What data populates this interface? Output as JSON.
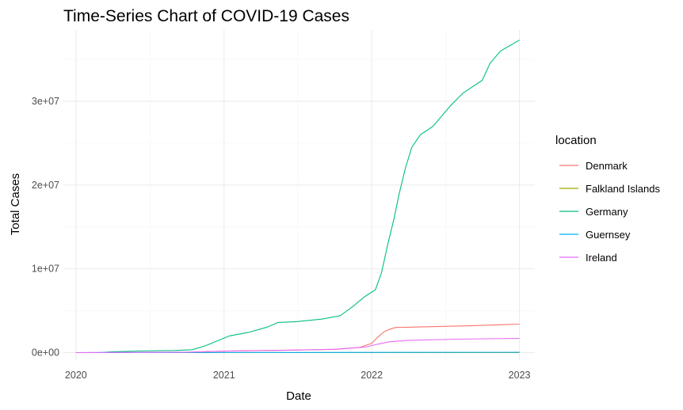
{
  "chart_data": {
    "type": "line",
    "title": "Time-Series Chart of COVID-19 Cases",
    "xlabel": "Date",
    "ylabel": "Total Cases",
    "x_ticks": [
      "2020",
      "2021",
      "2022",
      "2023"
    ],
    "y_ticks": [
      "0e+00",
      "1e+07",
      "2e+07",
      "3e+07"
    ],
    "xlim": [
      "2019-12-01",
      "2023-02-08"
    ],
    "ylim": [
      -900000,
      38500000
    ],
    "grid": true,
    "legend": {
      "title": "location",
      "position": "right"
    },
    "series": [
      {
        "name": "Denmark",
        "color": "#F8766D",
        "points": [
          [
            "2020-01-01",
            0
          ],
          [
            "2020-03-01",
            0
          ],
          [
            "2020-06-01",
            12000
          ],
          [
            "2020-10-01",
            30000
          ],
          [
            "2021-01-01",
            190000
          ],
          [
            "2021-06-01",
            290000
          ],
          [
            "2021-10-01",
            380000
          ],
          [
            "2021-12-01",
            600000
          ],
          [
            "2022-01-01",
            1100000
          ],
          [
            "2022-01-15",
            1800000
          ],
          [
            "2022-02-01",
            2500000
          ],
          [
            "2022-02-15",
            2800000
          ],
          [
            "2022-03-01",
            3000000
          ],
          [
            "2022-06-01",
            3100000
          ],
          [
            "2022-09-01",
            3200000
          ],
          [
            "2023-01-01",
            3400000
          ]
        ]
      },
      {
        "name": "Falkland Islands",
        "color": "#A3A500",
        "points": [
          [
            "2020-01-01",
            0
          ],
          [
            "2023-01-01",
            1930
          ]
        ]
      },
      {
        "name": "Germany",
        "color": "#00BF7D",
        "points": [
          [
            "2020-01-01",
            0
          ],
          [
            "2020-03-01",
            5000
          ],
          [
            "2020-04-01",
            100000
          ],
          [
            "2020-06-01",
            190000
          ],
          [
            "2020-09-01",
            250000
          ],
          [
            "2020-10-15",
            350000
          ],
          [
            "2020-11-15",
            800000
          ],
          [
            "2020-12-15",
            1400000
          ],
          [
            "2021-01-15",
            2000000
          ],
          [
            "2021-03-01",
            2400000
          ],
          [
            "2021-04-15",
            3000000
          ],
          [
            "2021-05-15",
            3600000
          ],
          [
            "2021-07-01",
            3700000
          ],
          [
            "2021-09-01",
            4000000
          ],
          [
            "2021-10-15",
            4400000
          ],
          [
            "2021-11-15",
            5500000
          ],
          [
            "2021-12-15",
            6700000
          ],
          [
            "2022-01-10",
            7500000
          ],
          [
            "2022-01-25",
            9500000
          ],
          [
            "2022-02-10",
            13000000
          ],
          [
            "2022-02-25",
            16000000
          ],
          [
            "2022-03-10",
            19000000
          ],
          [
            "2022-03-25",
            22000000
          ],
          [
            "2022-04-10",
            24500000
          ],
          [
            "2022-05-01",
            26000000
          ],
          [
            "2022-06-01",
            27000000
          ],
          [
            "2022-07-15",
            29500000
          ],
          [
            "2022-08-15",
            31000000
          ],
          [
            "2022-10-01",
            32500000
          ],
          [
            "2022-10-20",
            34500000
          ],
          [
            "2022-11-15",
            36000000
          ],
          [
            "2023-01-01",
            37300000
          ]
        ]
      },
      {
        "name": "Guernsey",
        "color": "#00B0F6",
        "points": [
          [
            "2020-01-01",
            0
          ],
          [
            "2023-01-01",
            35000
          ]
        ]
      },
      {
        "name": "Ireland",
        "color": "#E76BF3",
        "points": [
          [
            "2020-01-01",
            0
          ],
          [
            "2020-04-01",
            20000
          ],
          [
            "2020-10-01",
            50000
          ],
          [
            "2021-01-15",
            180000
          ],
          [
            "2021-06-01",
            270000
          ],
          [
            "2021-10-01",
            400000
          ],
          [
            "2021-12-15",
            650000
          ],
          [
            "2022-01-15",
            1000000
          ],
          [
            "2022-02-15",
            1300000
          ],
          [
            "2022-04-01",
            1450000
          ],
          [
            "2022-08-01",
            1600000
          ],
          [
            "2023-01-01",
            1700000
          ]
        ]
      }
    ]
  }
}
